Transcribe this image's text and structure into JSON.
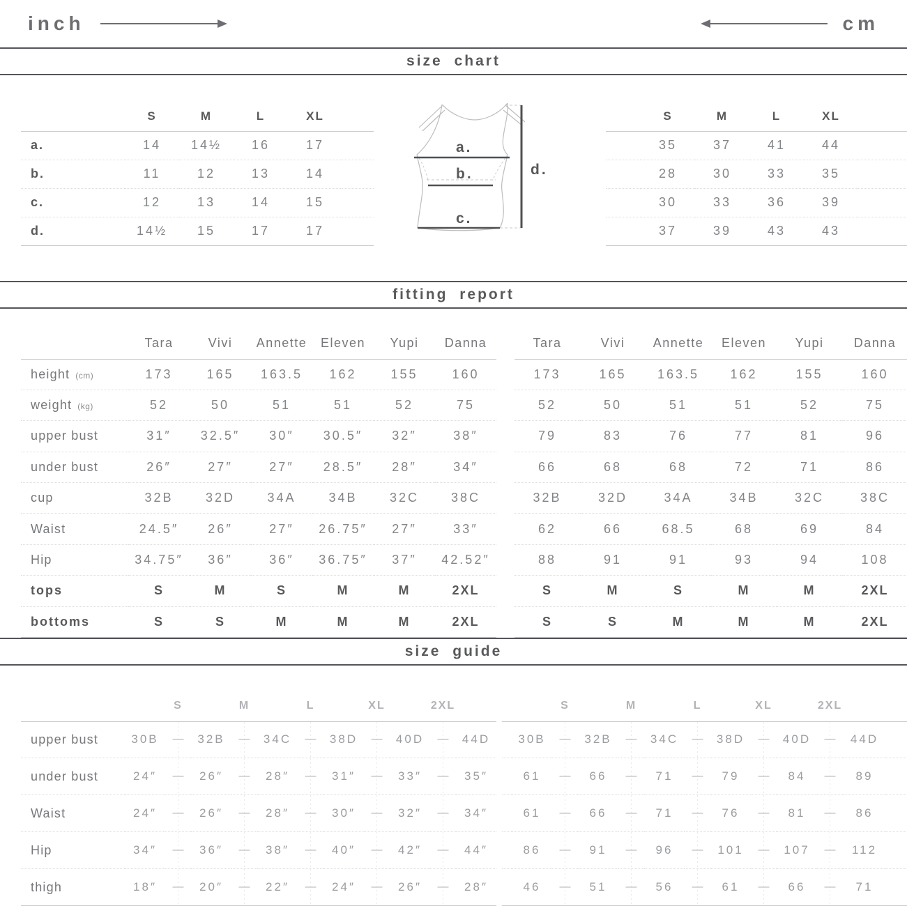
{
  "units_bar": {
    "inch_label": "inch",
    "cm_label": "cm"
  },
  "size_chart": {
    "title": "size chart",
    "sizes": [
      "S",
      "M",
      "L",
      "XL"
    ],
    "row_labels": [
      "a.",
      "b.",
      "c.",
      "d."
    ],
    "inch_table": [
      [
        "14",
        "14½",
        "16",
        "17"
      ],
      [
        "11",
        "12",
        "13",
        "14"
      ],
      [
        "12",
        "13",
        "14",
        "15"
      ],
      [
        "14½",
        "15",
        "17",
        "17"
      ]
    ],
    "cm_table": [
      [
        "35",
        "37",
        "41",
        "44"
      ],
      [
        "28",
        "30",
        "33",
        "35"
      ],
      [
        "30",
        "33",
        "36",
        "39"
      ],
      [
        "37",
        "39",
        "43",
        "43"
      ]
    ],
    "diagram_labels": {
      "a": "a.",
      "b": "b.",
      "c": "c.",
      "d": "d."
    }
  },
  "fitting_report": {
    "title": "fitting report",
    "models": [
      "Tara",
      "Vivi",
      "Annette",
      "Eleven",
      "Yupi",
      "Danna"
    ],
    "rows": [
      {
        "label": "height",
        "unit": "(cm)",
        "bold": false,
        "inch": [
          "173",
          "165",
          "163.5",
          "162",
          "155",
          "160"
        ],
        "cm": [
          "173",
          "165",
          "163.5",
          "162",
          "155",
          "160"
        ]
      },
      {
        "label": "weight",
        "unit": "(kg)",
        "bold": false,
        "inch": [
          "52",
          "50",
          "51",
          "51",
          "52",
          "75"
        ],
        "cm": [
          "52",
          "50",
          "51",
          "51",
          "52",
          "75"
        ]
      },
      {
        "label": "upper bust",
        "unit": "",
        "bold": false,
        "inch": [
          "31″",
          "32.5″",
          "30″",
          "30.5″",
          "32″",
          "38″"
        ],
        "cm": [
          "79",
          "83",
          "76",
          "77",
          "81",
          "96"
        ]
      },
      {
        "label": "under bust",
        "unit": "",
        "bold": false,
        "inch": [
          "26″",
          "27″",
          "27″",
          "28.5″",
          "28″",
          "34″"
        ],
        "cm": [
          "66",
          "68",
          "68",
          "72",
          "71",
          "86"
        ]
      },
      {
        "label": "cup",
        "unit": "",
        "bold": false,
        "inch": [
          "32B",
          "32D",
          "34A",
          "34B",
          "32C",
          "38C"
        ],
        "cm": [
          "32B",
          "32D",
          "34A",
          "34B",
          "32C",
          "38C"
        ]
      },
      {
        "label": "Waist",
        "unit": "",
        "bold": false,
        "inch": [
          "24.5″",
          "26″",
          "27″",
          "26.75″",
          "27″",
          "33″"
        ],
        "cm": [
          "62",
          "66",
          "68.5",
          "68",
          "69",
          "84"
        ]
      },
      {
        "label": "Hip",
        "unit": "",
        "bold": false,
        "inch": [
          "34.75″",
          "36″",
          "36″",
          "36.75″",
          "37″",
          "42.52″"
        ],
        "cm": [
          "88",
          "91",
          "91",
          "93",
          "94",
          "108"
        ]
      },
      {
        "label": "tops",
        "unit": "",
        "bold": true,
        "inch": [
          "S",
          "M",
          "S",
          "M",
          "M",
          "2XL"
        ],
        "cm": [
          "S",
          "M",
          "S",
          "M",
          "M",
          "2XL"
        ]
      },
      {
        "label": "bottoms",
        "unit": "",
        "bold": true,
        "inch": [
          "S",
          "S",
          "M",
          "M",
          "M",
          "2XL"
        ],
        "cm": [
          "S",
          "S",
          "M",
          "M",
          "M",
          "2XL"
        ]
      }
    ]
  },
  "size_guide": {
    "title": "size guide",
    "sizes": [
      "S",
      "M",
      "L",
      "XL",
      "2XL"
    ],
    "separator": "—",
    "rows": [
      {
        "label": "upper bust",
        "inch": [
          "30B",
          "32B",
          "34C",
          "38D",
          "40D",
          "44D"
        ],
        "cm": [
          "30B",
          "32B",
          "34C",
          "38D",
          "40D",
          "44D"
        ]
      },
      {
        "label": "under bust",
        "inch": [
          "24″",
          "26″",
          "28″",
          "31″",
          "33″",
          "35″"
        ],
        "cm": [
          "61",
          "66",
          "71",
          "79",
          "84",
          "89"
        ]
      },
      {
        "label": "Waist",
        "inch": [
          "24″",
          "26″",
          "28″",
          "30″",
          "32″",
          "34″"
        ],
        "cm": [
          "61",
          "66",
          "71",
          "76",
          "81",
          "86"
        ]
      },
      {
        "label": "Hip",
        "inch": [
          "34″",
          "36″",
          "38″",
          "40″",
          "42″",
          "44″"
        ],
        "cm": [
          "86",
          "91",
          "96",
          "101",
          "107",
          "112"
        ]
      },
      {
        "label": "thigh",
        "inch": [
          "18″",
          "20″",
          "22″",
          "24″",
          "26″",
          "28″"
        ],
        "cm": [
          "46",
          "51",
          "56",
          "61",
          "66",
          "71"
        ]
      }
    ]
  }
}
